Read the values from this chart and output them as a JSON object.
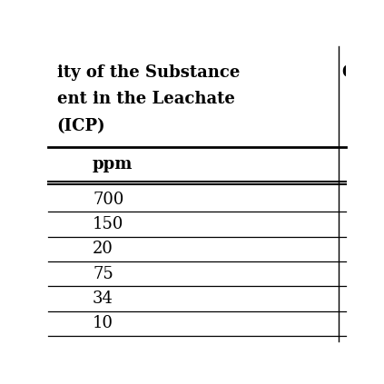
{
  "col1_header_lines": [
    "ity of the Substance",
    "ent in the Leachate",
    "(ICP)"
  ],
  "col2_header_lines": [
    "Q"
  ],
  "col1_subheader": "ppm",
  "col1_values": [
    "700",
    "150",
    "20",
    "75",
    "34",
    "10"
  ],
  "background_color": "#ffffff",
  "text_color": "#000000",
  "font_size_header": 13,
  "font_size_subheader": 13,
  "font_size_data": 13,
  "line_color": "#000000",
  "header_font_weight": "bold",
  "figsize": [
    4.23,
    4.23
  ],
  "dpi": 100
}
